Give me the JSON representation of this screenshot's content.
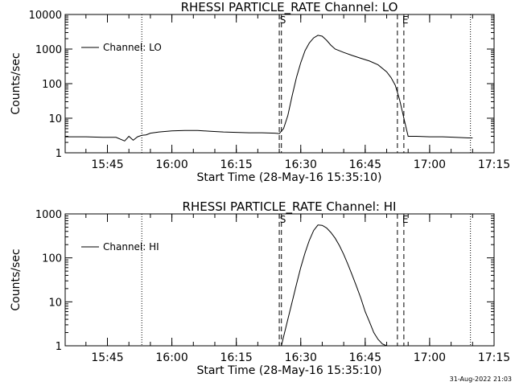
{
  "footer_timestamp": "31-Aug-2022 21:03",
  "chart_data": [
    {
      "type": "line",
      "title": "RHESSI PARTICLE_RATE Channel: LO",
      "xlabel": "Start Time (28-May-16 15:35:10)",
      "ylabel": "Counts/sec",
      "yscale": "log",
      "ylim": [
        1,
        10000
      ],
      "y_ticks": [
        "1",
        "10",
        "100",
        "1000",
        "10000"
      ],
      "xlim": [
        "15:35:10",
        "17:15"
      ],
      "x_ticks": [
        "15:45",
        "16:00",
        "16:15",
        "16:30",
        "16:45",
        "17:00",
        "17:15"
      ],
      "legend": "Channel: LO",
      "markers": [
        {
          "label": "S",
          "time": "16:25:30",
          "style": "dashed"
        },
        {
          "label": "E",
          "time": "16:54:00",
          "style": "dashed"
        }
      ],
      "markers_unlabeled": [
        {
          "time": "16:25:00",
          "style": "dashed"
        },
        {
          "time": "16:52:30",
          "style": "dashed"
        }
      ],
      "dotted_lines": [
        "15:53:00",
        "17:09:30"
      ],
      "series": [
        {
          "name": "Channel: LO",
          "x": [
            "15:35:10",
            "15:40",
            "15:44",
            "15:47",
            "15:49",
            "15:50",
            "15:51",
            "15:52",
            "15:53",
            "15:54",
            "15:55",
            "15:57",
            "16:00",
            "16:03",
            "16:06",
            "16:09",
            "16:12",
            "16:15",
            "16:18",
            "16:21",
            "16:24",
            "16:25",
            "16:26",
            "16:27",
            "16:28",
            "16:29",
            "16:30",
            "16:31",
            "16:32",
            "16:33",
            "16:34",
            "16:35",
            "16:36",
            "16:37",
            "16:38",
            "16:40",
            "16:42",
            "16:44",
            "16:46",
            "16:48",
            "16:50",
            "16:51",
            "16:52",
            "16:53",
            "16:54",
            "16:55",
            "16:57",
            "17:00",
            "17:03",
            "17:06",
            "17:09",
            "17:10"
          ],
          "y": [
            2.9,
            2.9,
            2.8,
            2.8,
            2.2,
            3.0,
            2.3,
            2.9,
            3.2,
            3.3,
            3.7,
            4.0,
            4.3,
            4.4,
            4.4,
            4.2,
            4.0,
            3.9,
            3.8,
            3.8,
            3.7,
            3.6,
            5,
            12,
            45,
            150,
            400,
            900,
            1500,
            2100,
            2500,
            2350,
            1800,
            1300,
            1000,
            800,
            650,
            540,
            450,
            350,
            220,
            150,
            90,
            35,
            10,
            3.0,
            3.0,
            2.9,
            2.9,
            2.8,
            2.7,
            2.7
          ]
        }
      ]
    },
    {
      "type": "line",
      "title": "RHESSI PARTICLE_RATE Channel: HI",
      "xlabel": "Start Time (28-May-16 15:35:10)",
      "ylabel": "Counts/sec",
      "yscale": "log",
      "ylim": [
        1,
        1000
      ],
      "y_ticks": [
        "1",
        "10",
        "100",
        "1000"
      ],
      "xlim": [
        "15:35:10",
        "17:15"
      ],
      "x_ticks": [
        "15:45",
        "16:00",
        "16:15",
        "16:30",
        "16:45",
        "17:00",
        "17:15"
      ],
      "legend": "Channel: HI",
      "markers": [
        {
          "label": "S",
          "time": "16:25:30",
          "style": "dashed"
        },
        {
          "label": "E",
          "time": "16:54:00",
          "style": "dashed"
        }
      ],
      "markers_unlabeled": [
        {
          "time": "16:25:00",
          "style": "dashed"
        },
        {
          "time": "16:52:30",
          "style": "dashed"
        }
      ],
      "dotted_lines": [
        "15:53:00",
        "17:09:30"
      ],
      "series": [
        {
          "name": "Channel: HI",
          "x": [
            "16:25:30",
            "16:26",
            "16:27",
            "16:28",
            "16:29",
            "16:30",
            "16:31",
            "16:32",
            "16:33",
            "16:34",
            "16:35",
            "16:36",
            "16:37",
            "16:38",
            "16:39",
            "16:40",
            "16:41",
            "16:42",
            "16:43",
            "16:44",
            "16:45",
            "16:46",
            "16:47",
            "16:48",
            "16:49",
            "16:50"
          ],
          "y": [
            1.0,
            1.6,
            4,
            10,
            25,
            60,
            130,
            250,
            420,
            560,
            550,
            480,
            380,
            280,
            190,
            120,
            70,
            40,
            22,
            12,
            6,
            3.5,
            2.0,
            1.4,
            1.1,
            1.0
          ]
        }
      ]
    }
  ]
}
